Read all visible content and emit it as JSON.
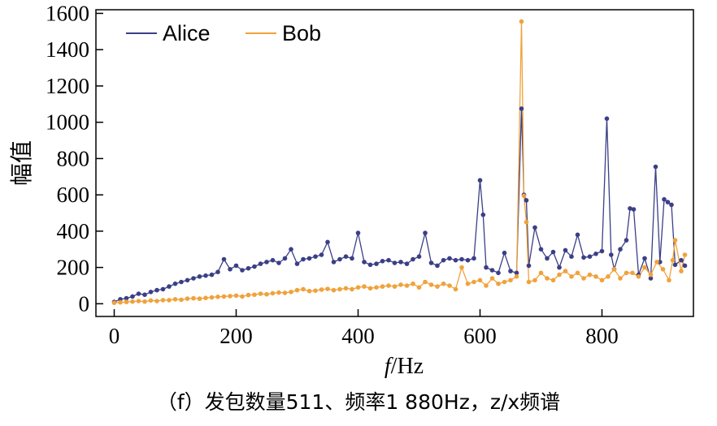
{
  "chart_data": {
    "type": "line",
    "xlabel_italic": "f",
    "xlabel_unit": "/Hz",
    "ylabel": "幅值",
    "xlim": [
      -30,
      950
    ],
    "ylim": [
      -70,
      1620
    ],
    "xticks": [
      "0",
      "200",
      "400",
      "600",
      "800"
    ],
    "xtick_values": [
      0,
      200,
      400,
      600,
      800
    ],
    "yticks": [
      "0",
      "200",
      "400",
      "600",
      "800",
      "1000",
      "1200",
      "1400",
      "1600"
    ],
    "ytick_values": [
      0,
      200,
      400,
      600,
      800,
      1000,
      1200,
      1400,
      1600
    ],
    "legend_position": "top-left",
    "series": [
      {
        "name": "Alice",
        "color": "#3b3f86",
        "x": [
          0,
          10,
          20,
          30,
          40,
          50,
          60,
          70,
          80,
          90,
          100,
          110,
          120,
          130,
          140,
          150,
          160,
          170,
          180,
          190,
          200,
          210,
          220,
          230,
          240,
          250,
          260,
          270,
          280,
          290,
          300,
          310,
          320,
          330,
          340,
          350,
          360,
          370,
          380,
          390,
          400,
          410,
          420,
          430,
          440,
          450,
          460,
          470,
          480,
          490,
          500,
          510,
          520,
          530,
          540,
          550,
          560,
          570,
          580,
          590,
          600,
          605,
          610,
          620,
          630,
          640,
          650,
          660,
          668,
          672,
          676,
          680,
          690,
          700,
          710,
          720,
          730,
          740,
          750,
          760,
          770,
          780,
          790,
          800,
          808,
          815,
          820,
          830,
          840,
          846,
          852,
          860,
          870,
          880,
          888,
          895,
          902,
          908,
          914,
          920,
          930,
          936
        ],
        "y": [
          10,
          25,
          30,
          40,
          55,
          50,
          65,
          75,
          80,
          95,
          110,
          120,
          130,
          140,
          150,
          155,
          160,
          175,
          245,
          190,
          210,
          185,
          195,
          205,
          220,
          230,
          240,
          225,
          250,
          300,
          220,
          245,
          250,
          260,
          270,
          340,
          230,
          245,
          260,
          250,
          390,
          230,
          215,
          220,
          235,
          240,
          225,
          230,
          220,
          245,
          260,
          390,
          225,
          210,
          240,
          250,
          240,
          245,
          240,
          250,
          680,
          490,
          200,
          185,
          170,
          280,
          180,
          170,
          1075,
          600,
          570,
          210,
          420,
          300,
          250,
          285,
          200,
          295,
          260,
          380,
          255,
          260,
          275,
          290,
          1020,
          270,
          190,
          300,
          350,
          525,
          520,
          160,
          250,
          140,
          755,
          230,
          575,
          560,
          545,
          215,
          240,
          210
        ]
      },
      {
        "name": "Bob",
        "color": "#f0a23c",
        "x": [
          0,
          10,
          20,
          30,
          40,
          50,
          60,
          70,
          80,
          90,
          100,
          110,
          120,
          130,
          140,
          150,
          160,
          170,
          180,
          190,
          200,
          210,
          220,
          230,
          240,
          250,
          260,
          270,
          280,
          290,
          300,
          310,
          320,
          330,
          340,
          350,
          360,
          370,
          380,
          390,
          400,
          410,
          420,
          430,
          440,
          450,
          460,
          470,
          480,
          490,
          500,
          510,
          520,
          530,
          540,
          550,
          560,
          570,
          580,
          590,
          600,
          610,
          620,
          630,
          640,
          650,
          660,
          668,
          672,
          676,
          680,
          690,
          700,
          710,
          720,
          730,
          740,
          750,
          760,
          770,
          780,
          790,
          800,
          810,
          820,
          830,
          840,
          850,
          860,
          870,
          880,
          890,
          900,
          910,
          916,
          920,
          930,
          936
        ],
        "y": [
          5,
          8,
          10,
          12,
          15,
          12,
          18,
          15,
          20,
          20,
          25,
          22,
          28,
          30,
          28,
          32,
          35,
          38,
          40,
          42,
          45,
          40,
          48,
          50,
          55,
          52,
          58,
          62,
          60,
          65,
          75,
          80,
          70,
          72,
          78,
          82,
          75,
          80,
          85,
          80,
          90,
          95,
          85,
          90,
          95,
          100,
          95,
          105,
          100,
          110,
          90,
          120,
          105,
          95,
          110,
          100,
          80,
          200,
          110,
          120,
          130,
          100,
          140,
          110,
          120,
          130,
          150,
          1555,
          595,
          450,
          120,
          130,
          170,
          140,
          130,
          160,
          180,
          150,
          170,
          140,
          160,
          150,
          130,
          150,
          190,
          140,
          170,
          170,
          150,
          200,
          160,
          230,
          190,
          130,
          240,
          350,
          180,
          270
        ]
      }
    ]
  },
  "caption": "（f）发包数量511、频率1 880Hz，z/x频谱"
}
